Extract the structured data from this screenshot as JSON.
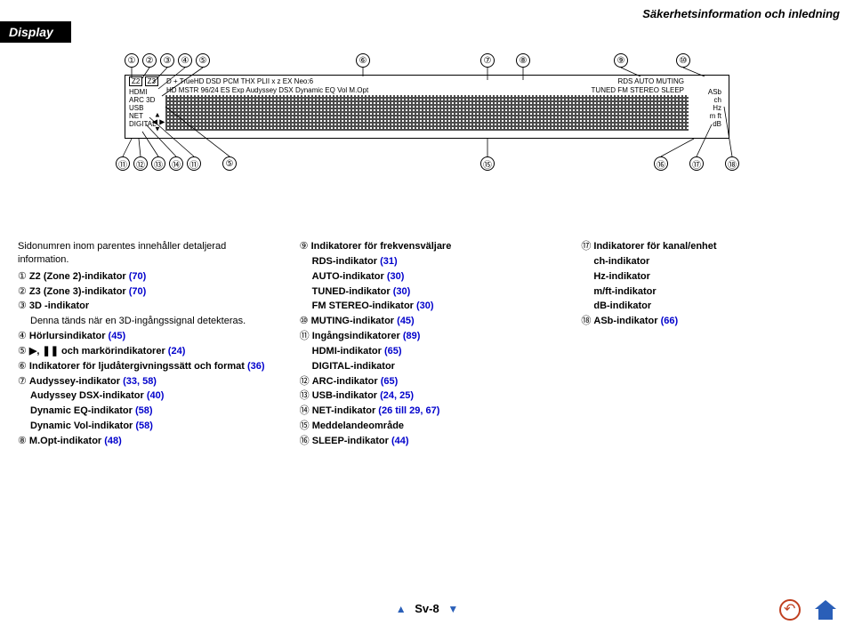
{
  "header": {
    "breadcrumb": "Säkerhetsinformation och inledning"
  },
  "tab": {
    "label": "Display"
  },
  "circled": [
    "①",
    "②",
    "③",
    "④",
    "⑤",
    "⑥",
    "⑦",
    "⑧",
    "⑨",
    "⑩",
    "⑪",
    "⑫",
    "⑬",
    "⑭",
    "⑮",
    "⑯",
    "⑰",
    "⑱"
  ],
  "display": {
    "z2": "Z2",
    "z3": "Z3",
    "left_col": [
      "HDMI",
      "ARC 3D",
      "USB",
      "NET",
      "DIGITAL"
    ],
    "row1": "D + TrueHD   DSD PCM  THX   PLII x z EX Neo:6",
    "row2": "HD MSTR 96/24 ES Exp  Audyssey DSX Dynamic EQ Vol  M.Opt",
    "rds": "RDS  AUTO MUTING",
    "fm": "TUNED   FM STEREO  SLEEP",
    "right_units": [
      "ASb",
      "ch",
      "Hz",
      "m ft",
      "dB"
    ]
  },
  "columns": {
    "intro": "Sidonumren inom parentes innehåller detaljerad information.",
    "left": [
      {
        "n": "①",
        "t": "Z2 (Zone 2)-indikator",
        "p": "(70)"
      },
      {
        "n": "②",
        "t": "Z3 (Zone 3)-indikator",
        "p": "(70)"
      },
      {
        "n": "③",
        "t": "3D -indikator",
        "sub": "Denna tänds när en 3D-ingångssignal detekteras."
      },
      {
        "n": "④",
        "t": "Hörlursindikator",
        "p": "(45)"
      },
      {
        "n": "⑤",
        "t": "▶, ❚❚ och markörindikatorer",
        "p": "(24)"
      },
      {
        "n": "⑥",
        "t": "Indikatorer för ljudåtergivningssätt och format",
        "p": "(36)"
      },
      {
        "n": "⑦",
        "t": "Audyssey-indikator",
        "p": "(33, 58)",
        "subs": [
          {
            "t": "Audyssey DSX-indikator",
            "p": "(40)"
          },
          {
            "t": "Dynamic EQ-indikator",
            "p": "(58)"
          },
          {
            "t": "Dynamic Vol-indikator",
            "p": "(58)"
          }
        ]
      },
      {
        "n": "⑧",
        "t": "M.Opt-indikator",
        "p": "(48)"
      }
    ],
    "mid": [
      {
        "n": "⑨",
        "t": "Indikatorer för frekvensväljare",
        "subs": [
          {
            "t": "RDS-indikator",
            "p": "(31)"
          },
          {
            "t": "AUTO-indikator",
            "p": "(30)"
          },
          {
            "t": "TUNED-indikator",
            "p": "(30)"
          },
          {
            "t": "FM STEREO-indikator",
            "p": "(30)"
          }
        ]
      },
      {
        "n": "⑩",
        "t": "MUTING-indikator",
        "p": "(45)"
      },
      {
        "n": "⑪",
        "t": "Ingångsindikatorer",
        "p": "(89)",
        "subs": [
          {
            "t": "HDMI-indikator",
            "p": "(65)"
          },
          {
            "t": "DIGITAL-indikator"
          }
        ]
      },
      {
        "n": "⑫",
        "t": "ARC-indikator",
        "p": "(65)"
      },
      {
        "n": "⑬",
        "t": "USB-indikator",
        "p": "(24, 25)"
      },
      {
        "n": "⑭",
        "t": "NET-indikator",
        "p": "(26 till 29, 67)"
      },
      {
        "n": "⑮",
        "t": "Meddelandeområde"
      },
      {
        "n": "⑯",
        "t": "SLEEP-indikator",
        "p": "(44)"
      }
    ],
    "right": [
      {
        "n": "⑰",
        "t": "Indikatorer för kanal/enhet",
        "subs": [
          {
            "t": "ch-indikator"
          },
          {
            "t": "Hz-indikator"
          },
          {
            "t": "m/ft-indikator"
          },
          {
            "t": "dB-indikator"
          }
        ]
      },
      {
        "n": "⑱",
        "t": "ASb-indikator",
        "p": "(66)"
      }
    ]
  },
  "footer": {
    "page": "Sv-8",
    "tri_left": "▲",
    "tri_right": "▼"
  }
}
